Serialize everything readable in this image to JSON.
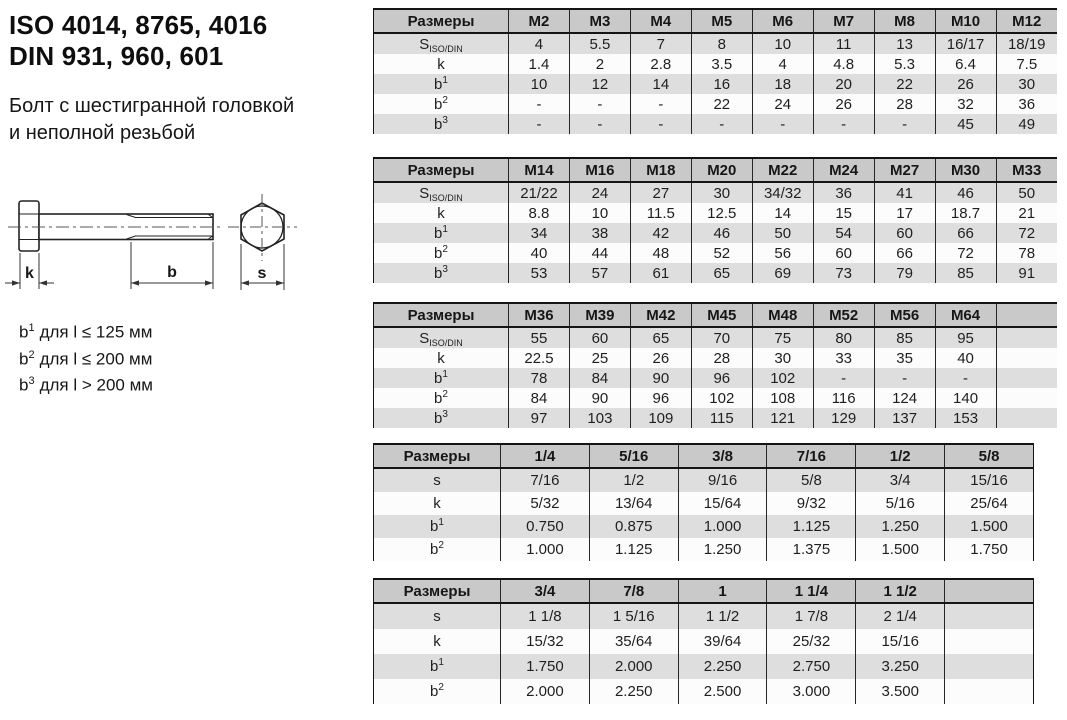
{
  "header": {
    "title_line1": "ISO 4014, 8765, 4016",
    "title_line2": "DIN 931, 960, 601",
    "subtitle_line1": "Болт с шестигранной головкой",
    "subtitle_line2": "и неполной резьбой"
  },
  "diagram": {
    "dim_k": "k",
    "dim_b": "b",
    "dim_s": "s"
  },
  "notes": [
    {
      "sym": "b",
      "sup": "1",
      "cond": "для l ≤ 125 мм"
    },
    {
      "sym": "b",
      "sup": "2",
      "cond": "для l ≤ 200 мм"
    },
    {
      "sym": "b",
      "sup": "3",
      "cond": "для l > 200 мм"
    }
  ],
  "colors": {
    "header_bg": "#c9c9c9",
    "shaded_row_bg": "#dedede",
    "plain_row_bg": "#fcfcfc",
    "border": "#141414",
    "text": "#1f1f1f"
  },
  "tables": [
    {
      "header": [
        "Размеры",
        "M2",
        "M3",
        "M4",
        "M5",
        "M6",
        "M7",
        "M8",
        "M10",
        "M12"
      ],
      "rows": [
        {
          "label": "S",
          "label_sub": "ISO/DIN",
          "values": [
            "4",
            "5.5",
            "7",
            "8",
            "10",
            "11",
            "13",
            "16/17",
            "18/19"
          ]
        },
        {
          "label": "k",
          "values": [
            "1.4",
            "2",
            "2.8",
            "3.5",
            "4",
            "4.8",
            "5.3",
            "6.4",
            "7.5"
          ]
        },
        {
          "label": "b",
          "label_sup": "1",
          "values": [
            "10",
            "12",
            "14",
            "16",
            "18",
            "20",
            "22",
            "26",
            "30"
          ]
        },
        {
          "label": "b",
          "label_sup": "2",
          "values": [
            "-",
            "-",
            "-",
            "22",
            "24",
            "26",
            "28",
            "32",
            "36"
          ]
        },
        {
          "label": "b",
          "label_sup": "3",
          "values": [
            "-",
            "-",
            "-",
            "-",
            "-",
            "-",
            "-",
            "45",
            "49"
          ]
        }
      ]
    },
    {
      "header": [
        "Размеры",
        "M14",
        "M16",
        "M18",
        "M20",
        "M22",
        "M24",
        "M27",
        "M30",
        "M33"
      ],
      "rows": [
        {
          "label": "S",
          "label_sub": "ISO/DIN",
          "values": [
            "21/22",
            "24",
            "27",
            "30",
            "34/32",
            "36",
            "41",
            "46",
            "50"
          ]
        },
        {
          "label": "k",
          "values": [
            "8.8",
            "10",
            "11.5",
            "12.5",
            "14",
            "15",
            "17",
            "18.7",
            "21"
          ]
        },
        {
          "label": "b",
          "label_sup": "1",
          "values": [
            "34",
            "38",
            "42",
            "46",
            "50",
            "54",
            "60",
            "66",
            "72"
          ]
        },
        {
          "label": "b",
          "label_sup": "2",
          "values": [
            "40",
            "44",
            "48",
            "52",
            "56",
            "60",
            "66",
            "72",
            "78"
          ]
        },
        {
          "label": "b",
          "label_sup": "3",
          "values": [
            "53",
            "57",
            "61",
            "65",
            "69",
            "73",
            "79",
            "85",
            "91"
          ]
        }
      ]
    },
    {
      "header": [
        "Размеры",
        "M36",
        "M39",
        "M42",
        "M45",
        "M48",
        "M52",
        "M56",
        "M64",
        ""
      ],
      "rows": [
        {
          "label": "S",
          "label_sub": "ISO/DIN",
          "values": [
            "55",
            "60",
            "65",
            "70",
            "75",
            "80",
            "85",
            "95",
            ""
          ]
        },
        {
          "label": "k",
          "values": [
            "22.5",
            "25",
            "26",
            "28",
            "30",
            "33",
            "35",
            "40",
            ""
          ]
        },
        {
          "label": "b",
          "label_sup": "1",
          "values": [
            "78",
            "84",
            "90",
            "96",
            "102",
            "-",
            "-",
            "-",
            ""
          ]
        },
        {
          "label": "b",
          "label_sup": "2",
          "values": [
            "84",
            "90",
            "96",
            "102",
            "108",
            "116",
            "124",
            "140",
            ""
          ]
        },
        {
          "label": "b",
          "label_sup": "3",
          "values": [
            "97",
            "103",
            "109",
            "115",
            "121",
            "129",
            "137",
            "153",
            ""
          ]
        }
      ]
    },
    {
      "header": [
        "Размеры",
        "1/4",
        "5/16",
        "3/8",
        "7/16",
        "1/2",
        "5/8"
      ],
      "rows": [
        {
          "label": "s",
          "values": [
            "7/16",
            "1/2",
            "9/16",
            "5/8",
            "3/4",
            "15/16"
          ]
        },
        {
          "label": "k",
          "values": [
            "5/32",
            "13/64",
            "15/64",
            "9/32",
            "5/16",
            "25/64"
          ]
        },
        {
          "label": "b",
          "label_sup": "1",
          "values": [
            "0.750",
            "0.875",
            "1.000",
            "1.125",
            "1.250",
            "1.500"
          ]
        },
        {
          "label": "b",
          "label_sup": "2",
          "values": [
            "1.000",
            "1.125",
            "1.250",
            "1.375",
            "1.500",
            "1.750"
          ]
        }
      ]
    },
    {
      "header": [
        "Размеры",
        "3/4",
        "7/8",
        "1",
        "1 1/4",
        "1 1/2",
        ""
      ],
      "rows": [
        {
          "label": "s",
          "values": [
            "1 1/8",
            "1 5/16",
            "1 1/2",
            "1 7/8",
            "2 1/4",
            ""
          ]
        },
        {
          "label": "k",
          "values": [
            "15/32",
            "35/64",
            "39/64",
            "25/32",
            "15/16",
            ""
          ]
        },
        {
          "label": "b",
          "label_sup": "1",
          "values": [
            "1.750",
            "2.000",
            "2.250",
            "2.750",
            "3.250",
            ""
          ]
        },
        {
          "label": "b",
          "label_sup": "2",
          "values": [
            "2.000",
            "2.250",
            "2.500",
            "3.000",
            "3.500",
            ""
          ]
        }
      ]
    }
  ]
}
